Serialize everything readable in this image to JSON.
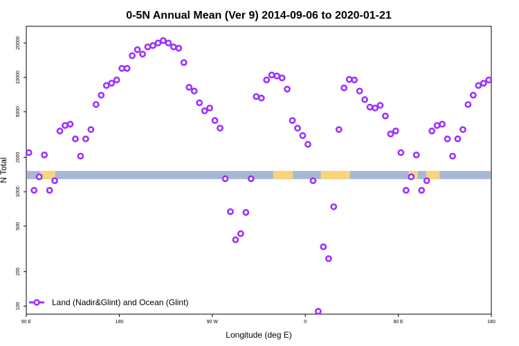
{
  "chart_data": {
    "type": "scatter",
    "title": "0-5N Annual Mean (Ver 9)   2014-09-06 to 2020-01-21",
    "xlabel": "Longitude (deg E)",
    "ylabel": "N Total",
    "x_ticks": [
      {
        "value": 90,
        "label": "90 E"
      },
      {
        "value": 180,
        "label": "180"
      },
      {
        "value": 270,
        "label": "90 W"
      },
      {
        "value": 360,
        "label": "0"
      },
      {
        "value": 450,
        "label": "90 E"
      },
      {
        "value": 540,
        "label": "180"
      }
    ],
    "y_ticks": [
      100,
      200,
      500,
      1000,
      2000,
      5000,
      10000,
      20000
    ],
    "y_scale": "log",
    "xlim": [
      90,
      540
    ],
    "ylim": [
      85,
      28000
    ],
    "legend": {
      "position": "bottom-left",
      "label": "Land (Nadir&Glint) and Ocean (Glint)"
    },
    "series": [
      {
        "name": "Land (Nadir&Glint) and Ocean (Glint)",
        "color": "#9B30FF",
        "x": [
          92.5,
          97.5,
          102.5,
          107.5,
          112.5,
          117.5,
          122.5,
          127.5,
          132.5,
          137.5,
          142.5,
          147.5,
          152.5,
          157.5,
          162.5,
          167.5,
          172.5,
          177.5,
          182.5,
          187.5,
          192.5,
          197.5,
          202.5,
          207.5,
          212.5,
          217.5,
          222.5,
          227.5,
          232.5,
          237.5,
          242.5,
          247.5,
          252.5,
          257.5,
          262.5,
          267.5,
          272.5,
          277.5,
          282.5,
          287.5,
          292.5,
          297.5,
          302.5,
          307.5,
          312.5,
          317.5,
          322.5,
          327.5,
          332.5,
          337.5,
          342.5,
          347.5,
          352.5,
          357.5,
          362.5,
          367.5,
          372.5,
          377.5,
          382.5,
          387.5,
          392.5,
          397.5,
          402.5,
          407.5,
          412.5,
          417.5,
          422.5,
          427.5,
          432.5,
          437.5,
          442.5,
          447.5,
          452.5,
          457.5,
          462.5,
          467.5,
          472.5,
          477.5,
          482.5,
          487.5,
          492.5,
          497.5,
          502.5,
          507.5,
          512.5,
          517.5,
          522.5,
          527.5,
          532.5,
          537.5
        ],
        "values": [
          2200,
          1030,
          1350,
          2100,
          1030,
          1250,
          3400,
          3800,
          3900,
          2900,
          2050,
          2900,
          3500,
          5800,
          7000,
          8500,
          8900,
          9500,
          12000,
          12000,
          15500,
          17500,
          16000,
          18500,
          19000,
          20000,
          21000,
          20000,
          18500,
          18000,
          13500,
          8200,
          7600,
          6000,
          5100,
          5400,
          4200,
          3600,
          1300,
          670,
          380,
          430,
          660,
          1300,
          6800,
          6600,
          9500,
          10500,
          10300,
          9900,
          7900,
          4200,
          3600,
          3100,
          2600,
          1250,
          90,
          330,
          260,
          740,
          3500,
          8100,
          9600,
          9500,
          7600,
          6400,
          5500,
          5400,
          5700,
          4600,
          3200,
          3400,
          2200,
          1030,
          1350,
          2100,
          1030,
          1250,
          3400,
          3800,
          3900,
          2900,
          2050,
          2900,
          3500,
          5800,
          7000,
          8500,
          8900,
          9500
        ]
      }
    ],
    "land_map_band": {
      "center": 1400,
      "low": 1290,
      "high": 1520
    }
  }
}
